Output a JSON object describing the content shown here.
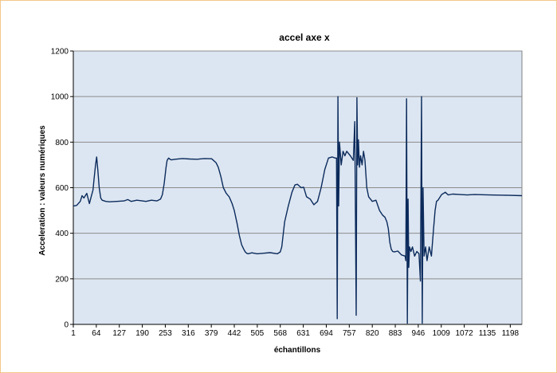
{
  "colors": {
    "frame_border": "#f3c78a",
    "plot_background": "#dce6f2",
    "gridline": "#8c8c8c",
    "series_line": "#0b2a5b"
  },
  "chart_data": {
    "type": "line",
    "title": "accel axe x",
    "xlabel": "échantillons",
    "ylabel": "Acceleration : valeurs numériques",
    "xlim": [
      1,
      1230
    ],
    "ylim": [
      0,
      1200
    ],
    "x_tick_labels": [
      "1",
      "64",
      "127",
      "190",
      "253",
      "316",
      "379",
      "442",
      "505",
      "568",
      "631",
      "694",
      "757",
      "820",
      "883",
      "946",
      "1009",
      "1072",
      "1135",
      "1198"
    ],
    "y_tick_labels": [
      "0",
      "200",
      "400",
      "600",
      "800",
      "1000",
      "1200"
    ],
    "grid": "horizontal",
    "legend": "none",
    "series": [
      {
        "x": [
          1,
          10,
          20,
          25,
          30,
          38,
          45,
          50,
          55,
          58,
          62,
          65,
          68,
          72,
          76,
          80,
          90,
          100,
          120,
          140,
          150,
          160,
          175,
          190,
          200,
          215,
          230,
          240,
          245,
          250,
          255,
          258,
          262,
          266,
          270,
          280,
          300,
          320,
          340,
          360,
          380,
          392,
          398,
          405,
          412,
          420,
          428,
          436,
          442,
          450,
          456,
          462,
          468,
          472,
          476,
          480,
          490,
          505,
          520,
          540,
          560,
          568,
          572,
          575,
          580,
          590,
          600,
          608,
          615,
          625,
          632,
          640,
          650,
          660,
          670,
          680,
          690,
          700,
          710,
          718,
          722,
          724,
          726,
          728,
          730,
          735,
          740,
          745,
          750,
          760,
          768,
          772,
          776,
          778,
          780,
          782,
          785,
          788,
          792,
          796,
          800,
          805,
          810,
          820,
          830,
          840,
          848,
          855,
          860,
          864,
          868,
          872,
          876,
          880,
          890,
          900,
          910,
          912,
          914,
          916,
          918,
          920,
          922,
          926,
          930,
          936,
          942,
          948,
          952,
          955,
          957,
          959,
          962,
          966,
          970,
          976,
          982,
          988,
          992,
          996,
          1000,
          1010,
          1020,
          1028,
          1040,
          1060,
          1080,
          1100,
          1140,
          1180,
          1230
        ],
        "y": [
          520,
          522,
          540,
          565,
          555,
          575,
          530,
          560,
          590,
          640,
          700,
          735,
          680,
          600,
          555,
          545,
          540,
          538,
          540,
          542,
          548,
          540,
          545,
          542,
          540,
          545,
          542,
          550,
          570,
          620,
          690,
          720,
          730,
          725,
          722,
          725,
          728,
          726,
          725,
          728,
          727,
          710,
          690,
          650,
          600,
          575,
          560,
          530,
          500,
          440,
          390,
          350,
          330,
          318,
          312,
          310,
          314,
          310,
          312,
          315,
          310,
          318,
          340,
          380,
          450,
          520,
          580,
          612,
          615,
          600,
          602,
          560,
          550,
          525,
          540,
          600,
          680,
          730,
          735,
          730,
          730,
          25,
          1000,
          520,
          800,
          700,
          760,
          740,
          760,
          740,
          720,
          890,
          40,
          995,
          700,
          810,
          690,
          740,
          700,
          760,
          720,
          600,
          560,
          540,
          545,
          500,
          480,
          470,
          450,
          420,
          360,
          330,
          320,
          318,
          322,
          305,
          300,
          280,
          990,
          5,
          550,
          250,
          340,
          320,
          340,
          300,
          320,
          310,
          190,
          1000,
          5,
          600,
          300,
          340,
          280,
          340,
          300,
          420,
          500,
          540,
          545,
          570,
          580,
          568,
          572,
          570,
          568,
          570,
          568,
          567,
          565
        ]
      }
    ]
  }
}
